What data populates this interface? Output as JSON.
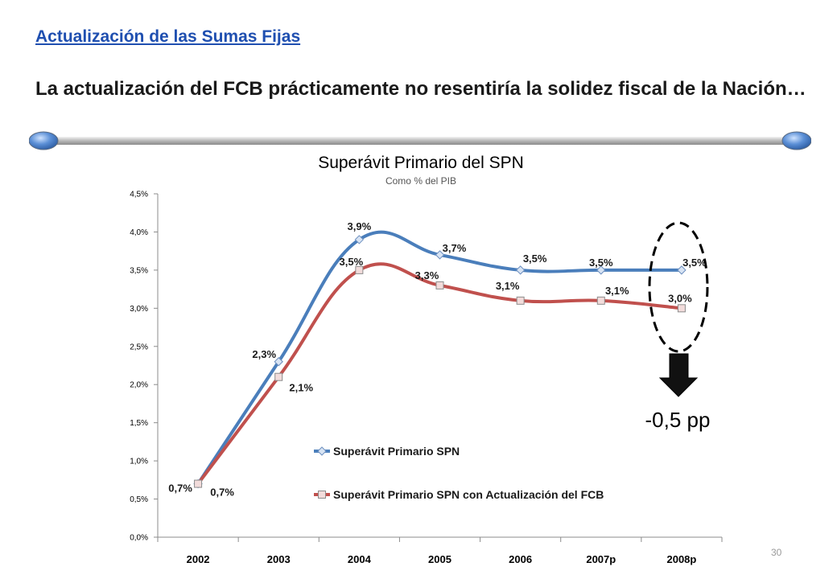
{
  "slide": {
    "link_title": "Actualización de las Sumas Fijas",
    "headline": "La actualización del FCB prácticamente no resentiría la solidez fiscal de la Nación…",
    "page_number": "30"
  },
  "chart_data": {
    "type": "line",
    "title": "Superávit Primario del SPN",
    "subtitle": "Como % del PIB",
    "categories": [
      "2002",
      "2003",
      "2004",
      "2005",
      "2006",
      "2007p",
      "2008p"
    ],
    "series": [
      {
        "name": "Superávit Primario SPN",
        "color": "#4a7ebb",
        "values": [
          0.7,
          2.3,
          3.9,
          3.7,
          3.5,
          3.5,
          3.5
        ],
        "labels": [
          "0,7%",
          "2,3%",
          "3,9%",
          "3,7%",
          "3,5%",
          "3,5%",
          "3,5%"
        ]
      },
      {
        "name": "Superávit Primario SPN con Actualización del FCB",
        "color": "#c0504d",
        "values": [
          0.7,
          2.1,
          3.5,
          3.3,
          3.1,
          3.1,
          3.0
        ],
        "labels": [
          "0,7%",
          "2,1%",
          "3,5%",
          "3,3%",
          "3,1%",
          "3,1%",
          "3,0%"
        ]
      }
    ],
    "ylim": [
      0,
      4.5
    ],
    "yticks": [
      "0,0%",
      "0,5%",
      "1,0%",
      "1,5%",
      "2,0%",
      "2,5%",
      "3,0%",
      "3,5%",
      "4,0%",
      "4,5%"
    ],
    "grid": false,
    "legend": "inside-bottom-center",
    "annotation": "-0,5 pp"
  }
}
